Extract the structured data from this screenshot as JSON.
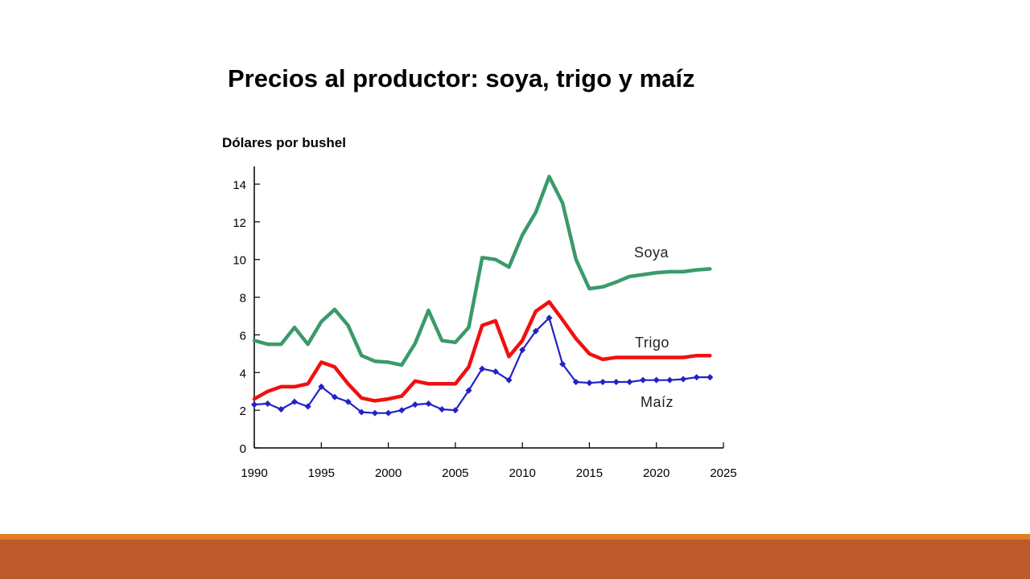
{
  "page": {
    "title": "Precios al productor: soya, trigo y maíz",
    "y_unit": "Dólares por bushel"
  },
  "colors": {
    "soya": "#3a9a6a",
    "trigo": "#f01010",
    "maiz": "#2222c4",
    "axis": "#000000",
    "footer_top": "#e27d21",
    "footer": "#bc5a2c"
  },
  "chart_data": {
    "type": "line",
    "title": "Precios al productor: soya, trigo y maíz",
    "ylabel": "Dólares por bushel",
    "xlabel": "",
    "xlim": [
      1990,
      2025
    ],
    "ylim": [
      0,
      15
    ],
    "x_ticks": [
      1990,
      1995,
      2000,
      2005,
      2010,
      2015,
      2020,
      2025
    ],
    "y_ticks": [
      0,
      2,
      4,
      6,
      8,
      10,
      12,
      14
    ],
    "grid": false,
    "legend": "inline-labels-right",
    "x": [
      1990,
      1991,
      1992,
      1993,
      1994,
      1995,
      1996,
      1997,
      1998,
      1999,
      2000,
      2001,
      2002,
      2003,
      2004,
      2005,
      2006,
      2007,
      2008,
      2009,
      2010,
      2011,
      2012,
      2013,
      2014,
      2015,
      2016,
      2017,
      2018,
      2019,
      2020,
      2021,
      2022,
      2023,
      2024
    ],
    "series": [
      {
        "name": "Soya",
        "key": "soya",
        "values": [
          5.7,
          5.5,
          5.5,
          6.4,
          5.5,
          6.7,
          7.35,
          6.5,
          4.9,
          4.6,
          4.55,
          4.4,
          5.55,
          7.3,
          5.7,
          5.6,
          6.4,
          10.1,
          10.0,
          9.6,
          11.3,
          12.5,
          14.4,
          13.0,
          10.0,
          8.45,
          8.55,
          8.8,
          9.1,
          9.2,
          9.3,
          9.35,
          9.35,
          9.45,
          9.5
        ]
      },
      {
        "name": "Trigo",
        "key": "trigo",
        "values": [
          2.6,
          3.0,
          3.25,
          3.25,
          3.4,
          4.55,
          4.3,
          3.4,
          2.65,
          2.5,
          2.6,
          2.75,
          3.55,
          3.4,
          3.4,
          3.4,
          4.3,
          6.5,
          6.75,
          4.85,
          5.7,
          7.25,
          7.75,
          6.8,
          5.8,
          5.0,
          4.7,
          4.8,
          4.8,
          4.8,
          4.8,
          4.8,
          4.8,
          4.9,
          4.9
        ]
      },
      {
        "name": "Maíz",
        "key": "maiz",
        "values": [
          2.3,
          2.35,
          2.05,
          2.45,
          2.2,
          3.25,
          2.7,
          2.45,
          1.9,
          1.85,
          1.85,
          2.0,
          2.3,
          2.35,
          2.05,
          2.0,
          3.05,
          4.2,
          4.05,
          3.6,
          5.2,
          6.2,
          6.9,
          4.45,
          3.5,
          3.45,
          3.5,
          3.5,
          3.5,
          3.6,
          3.6,
          3.6,
          3.65,
          3.75,
          3.75
        ],
        "markers": true
      }
    ]
  }
}
